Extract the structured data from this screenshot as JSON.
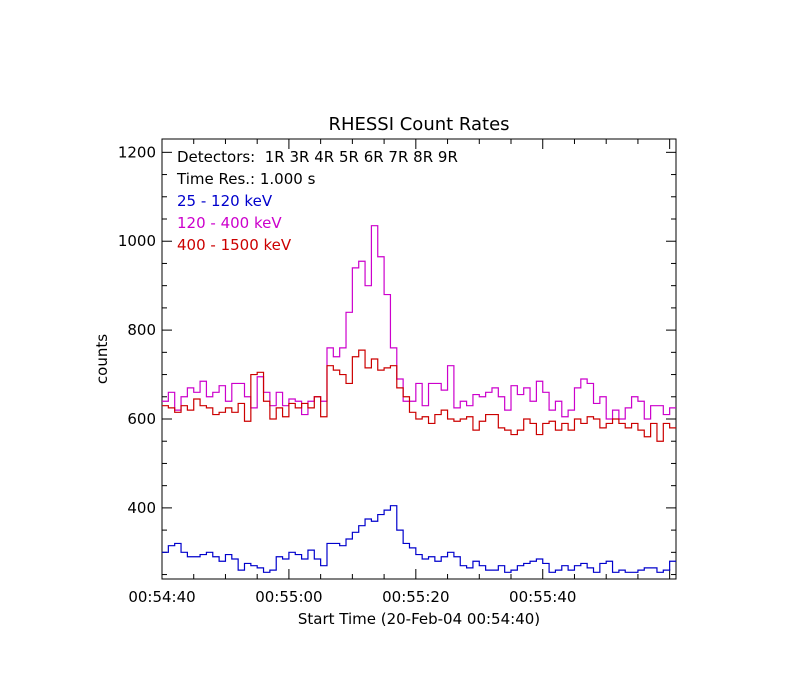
{
  "chart_data": {
    "type": "line",
    "title": "RHESSI Count Rates",
    "xlabel": "Start Time (20-Feb-04 00:54:40)",
    "ylabel": "counts",
    "x_unit": "seconds after 00:54:40",
    "xlim": [
      0,
      81
    ],
    "ylim": [
      240,
      1230
    ],
    "x_ticks": [
      {
        "value": 0,
        "label": "00:54:40"
      },
      {
        "value": 20,
        "label": "00:55:00"
      },
      {
        "value": 40,
        "label": "00:55:20"
      },
      {
        "value": 60,
        "label": "00:55:40"
      }
    ],
    "y_ticks": [
      {
        "value": 400,
        "label": "400"
      },
      {
        "value": 600,
        "label": "600"
      },
      {
        "value": 800,
        "label": "800"
      },
      {
        "value": 1000,
        "label": "1000"
      },
      {
        "value": 1200,
        "label": "1200"
      }
    ],
    "annotations": {
      "detectors": "Detectors:  1R 3R 4R 5R 6R 7R 8R 9R",
      "time_res": "Time Res.: 1.000 s"
    },
    "series": [
      {
        "name": " 25 - 120 keV",
        "color": "#0000cc",
        "values": [
          300,
          315,
          320,
          300,
          290,
          290,
          295,
          300,
          290,
          280,
          295,
          285,
          260,
          275,
          270,
          265,
          255,
          260,
          290,
          285,
          300,
          295,
          285,
          305,
          285,
          270,
          320,
          320,
          315,
          330,
          345,
          360,
          375,
          370,
          385,
          395,
          405,
          350,
          320,
          310,
          295,
          285,
          290,
          280,
          290,
          300,
          290,
          270,
          265,
          280,
          270,
          260,
          260,
          270,
          255,
          260,
          270,
          275,
          280,
          285,
          275,
          255,
          260,
          270,
          260,
          270,
          275,
          265,
          255,
          275,
          280,
          255,
          260,
          255,
          255,
          260,
          265,
          265,
          255,
          260,
          280
        ]
      },
      {
        "name": "120 - 400 keV",
        "color": "#cc00cc",
        "values": [
          640,
          660,
          620,
          650,
          670,
          660,
          685,
          650,
          660,
          675,
          640,
          680,
          680,
          650,
          625,
          695,
          660,
          630,
          660,
          630,
          645,
          640,
          610,
          640,
          650,
          640,
          760,
          740,
          760,
          840,
          940,
          955,
          900,
          1035,
          965,
          880,
          760,
          690,
          640,
          640,
          680,
          630,
          680,
          680,
          665,
          720,
          625,
          640,
          630,
          655,
          650,
          660,
          670,
          650,
          620,
          675,
          655,
          670,
          640,
          685,
          660,
          620,
          640,
          605,
          620,
          670,
          690,
          680,
          635,
          650,
          600,
          620,
          600,
          625,
          650,
          640,
          600,
          630,
          630,
          610,
          625
        ]
      },
      {
        "name": "400 - 1500 keV",
        "color": "#cc0000",
        "values": [
          630,
          625,
          615,
          630,
          620,
          645,
          630,
          625,
          610,
          615,
          625,
          615,
          635,
          595,
          700,
          705,
          640,
          600,
          625,
          605,
          635,
          625,
          635,
          625,
          650,
          605,
          720,
          710,
          700,
          680,
          740,
          755,
          715,
          735,
          710,
          715,
          720,
          670,
          650,
          615,
          600,
          605,
          590,
          610,
          620,
          600,
          595,
          600,
          605,
          575,
          595,
          610,
          610,
          580,
          575,
          565,
          575,
          600,
          590,
          565,
          590,
          595,
          575,
          590,
          575,
          600,
          590,
          605,
          600,
          580,
          590,
          600,
          590,
          580,
          590,
          575,
          560,
          590,
          550,
          590,
          580
        ]
      }
    ]
  }
}
